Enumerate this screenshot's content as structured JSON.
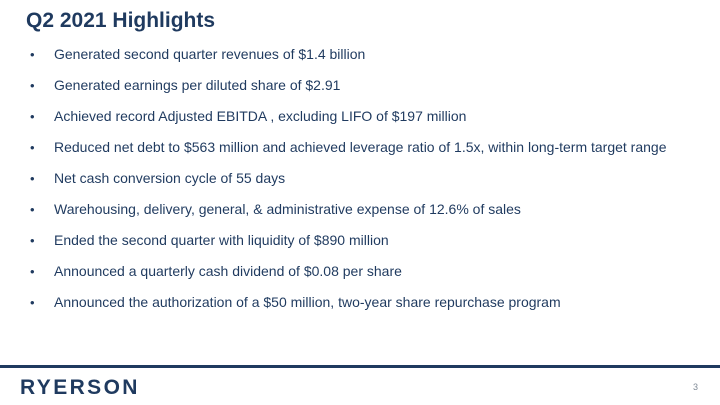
{
  "slide": {
    "title": "Q2 2021 Highlights",
    "bullet_glyph": "•",
    "bullets": [
      "Generated second quarter revenues of $1.4 billion",
      "Generated earnings per diluted share of $2.91",
      "Achieved record Adjusted EBITDA , excluding LIFO of $197 million",
      "Reduced net debt to $563 million and achieved leverage ratio of 1.5x, within long-term target range",
      "Net cash conversion cycle of 55 days",
      "Warehousing, delivery, general, & administrative expense of 12.6% of sales",
      "Ended the second quarter with liquidity of $890 million",
      "Announced a quarterly cash dividend of $0.08 per share",
      "Announced the authorization of a $50 million, two-year share repurchase program"
    ]
  },
  "footer": {
    "logo_text": "RYERSON",
    "page_number": "3"
  },
  "colors": {
    "brand_navy": "#1f3a5f",
    "page_number_gray": "#7f8a96"
  }
}
